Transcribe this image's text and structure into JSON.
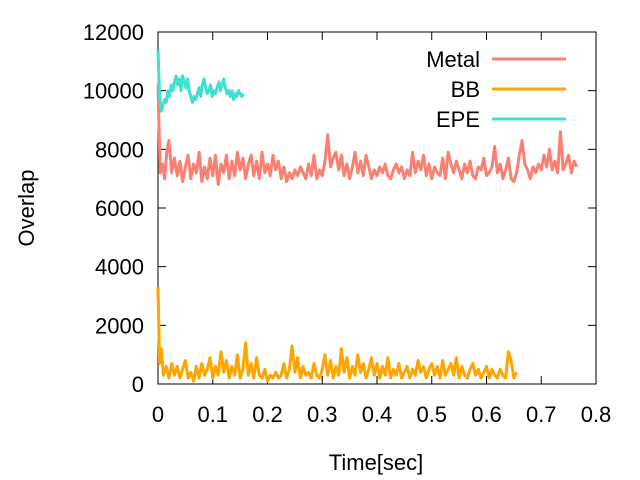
{
  "chart_data": {
    "type": "line",
    "title": "",
    "xlabel": "Time[sec]",
    "ylabel": "Overlap",
    "xlim": [
      0,
      0.8
    ],
    "ylim": [
      0,
      12000
    ],
    "xticks": [
      "0",
      "0.1",
      "0.2",
      "0.3",
      "0.4",
      "0.5",
      "0.6",
      "0.7",
      "0.8"
    ],
    "xtick_values": [
      0,
      0.1,
      0.2,
      0.3,
      0.4,
      0.5,
      0.6,
      0.7,
      0.8
    ],
    "yticks": [
      "0",
      "2000",
      "4000",
      "6000",
      "8000",
      "10000",
      "12000"
    ],
    "ytick_values": [
      0,
      2000,
      4000,
      6000,
      8000,
      10000,
      12000
    ],
    "grid": false,
    "legend_position": "top-right",
    "series": [
      {
        "name": "Metal",
        "color": "#fa8072",
        "x": [
          0,
          0.004,
          0.008,
          0.012,
          0.016,
          0.02,
          0.025,
          0.03,
          0.035,
          0.04,
          0.045,
          0.05,
          0.055,
          0.06,
          0.065,
          0.07,
          0.075,
          0.08,
          0.085,
          0.09,
          0.095,
          0.1,
          0.105,
          0.11,
          0.115,
          0.12,
          0.125,
          0.13,
          0.135,
          0.14,
          0.145,
          0.15,
          0.155,
          0.16,
          0.165,
          0.17,
          0.175,
          0.18,
          0.185,
          0.19,
          0.195,
          0.2,
          0.205,
          0.21,
          0.215,
          0.22,
          0.225,
          0.23,
          0.235,
          0.24,
          0.245,
          0.25,
          0.255,
          0.26,
          0.265,
          0.27,
          0.275,
          0.28,
          0.285,
          0.29,
          0.295,
          0.3,
          0.305,
          0.31,
          0.315,
          0.32,
          0.325,
          0.33,
          0.335,
          0.34,
          0.345,
          0.35,
          0.355,
          0.36,
          0.365,
          0.37,
          0.375,
          0.38,
          0.385,
          0.39,
          0.395,
          0.4,
          0.405,
          0.41,
          0.415,
          0.42,
          0.425,
          0.43,
          0.435,
          0.44,
          0.445,
          0.45,
          0.455,
          0.46,
          0.465,
          0.47,
          0.475,
          0.48,
          0.485,
          0.49,
          0.495,
          0.5,
          0.505,
          0.51,
          0.515,
          0.52,
          0.525,
          0.53,
          0.535,
          0.54,
          0.545,
          0.55,
          0.555,
          0.56,
          0.565,
          0.57,
          0.575,
          0.58,
          0.585,
          0.59,
          0.595,
          0.6,
          0.605,
          0.61,
          0.615,
          0.62,
          0.625,
          0.63,
          0.635,
          0.64,
          0.645,
          0.65,
          0.655,
          0.66,
          0.665,
          0.67,
          0.675,
          0.68,
          0.685,
          0.69,
          0.695,
          0.7,
          0.705,
          0.71,
          0.715,
          0.72,
          0.725,
          0.73,
          0.735,
          0.74,
          0.745,
          0.75,
          0.755,
          0.76,
          0.765
        ],
        "y": [
          10200,
          7200,
          7500,
          7000,
          7900,
          8300,
          7200,
          7700,
          7100,
          7600,
          6900,
          7400,
          7800,
          7000,
          7500,
          7200,
          7900,
          6900,
          7400,
          7000,
          7700,
          7100,
          7800,
          6800,
          7500,
          7200,
          7800,
          7000,
          7600,
          7100,
          7900,
          7300,
          7700,
          7000,
          7500,
          7800,
          7100,
          7600,
          7000,
          7900,
          7200,
          7500,
          7100,
          7800,
          7300,
          7600,
          7000,
          7400,
          6900,
          7200,
          7000,
          7300,
          7100,
          7400,
          7200,
          7000,
          7500,
          7100,
          7800,
          7000,
          7300,
          7100,
          7600,
          8500,
          7400,
          7700,
          7900,
          7300,
          7800,
          7100,
          7500,
          7000,
          7400,
          7900,
          7200,
          7600,
          7100,
          7800,
          7400,
          7000,
          7300,
          7100,
          7400,
          7200,
          7500,
          7100,
          7000,
          7300,
          7500,
          7200,
          7400,
          7000,
          7300,
          7100,
          7900,
          7200,
          7600,
          7300,
          7800,
          7100,
          7500,
          7000,
          7400,
          7200,
          7100,
          7700,
          7000,
          7900,
          7500,
          7200,
          7600,
          7300,
          7000,
          7500,
          7200,
          7600,
          7100,
          7000,
          7400,
          7300,
          7700,
          7100,
          7200,
          7400,
          8100,
          7200,
          7500,
          7000,
          7300,
          7700,
          7000,
          6900,
          7200,
          7800,
          8300,
          7500,
          7300,
          7000,
          7400,
          7200,
          7500,
          7300,
          7800,
          7400,
          8000,
          7300,
          7600,
          7200,
          8600,
          7300,
          7500,
          7800,
          7200,
          7600,
          7400
        ]
      },
      {
        "name": "BB",
        "color": "#ffa500",
        "x": [
          0,
          0.003,
          0.006,
          0.01,
          0.015,
          0.02,
          0.025,
          0.03,
          0.035,
          0.04,
          0.045,
          0.05,
          0.055,
          0.06,
          0.065,
          0.07,
          0.075,
          0.08,
          0.085,
          0.09,
          0.095,
          0.1,
          0.105,
          0.11,
          0.115,
          0.12,
          0.125,
          0.13,
          0.135,
          0.14,
          0.145,
          0.15,
          0.155,
          0.16,
          0.165,
          0.17,
          0.175,
          0.18,
          0.185,
          0.19,
          0.195,
          0.2,
          0.205,
          0.21,
          0.215,
          0.22,
          0.225,
          0.23,
          0.235,
          0.24,
          0.245,
          0.25,
          0.255,
          0.26,
          0.265,
          0.27,
          0.275,
          0.28,
          0.285,
          0.29,
          0.295,
          0.3,
          0.305,
          0.31,
          0.315,
          0.32,
          0.325,
          0.33,
          0.335,
          0.34,
          0.345,
          0.35,
          0.355,
          0.36,
          0.365,
          0.37,
          0.375,
          0.38,
          0.385,
          0.39,
          0.395,
          0.4,
          0.405,
          0.41,
          0.415,
          0.42,
          0.425,
          0.43,
          0.435,
          0.44,
          0.445,
          0.45,
          0.455,
          0.46,
          0.465,
          0.47,
          0.475,
          0.48,
          0.485,
          0.49,
          0.495,
          0.5,
          0.505,
          0.51,
          0.515,
          0.52,
          0.525,
          0.53,
          0.535,
          0.54,
          0.545,
          0.55,
          0.555,
          0.56,
          0.565,
          0.57,
          0.575,
          0.58,
          0.585,
          0.59,
          0.595,
          0.6,
          0.605,
          0.61,
          0.615,
          0.62,
          0.625,
          0.63,
          0.635,
          0.64,
          0.645,
          0.65,
          0.655
        ],
        "y": [
          3300,
          700,
          1200,
          300,
          600,
          200,
          700,
          300,
          600,
          200,
          500,
          800,
          200,
          400,
          100,
          600,
          200,
          700,
          300,
          500,
          900,
          200,
          600,
          300,
          1100,
          400,
          800,
          200,
          600,
          300,
          1000,
          200,
          500,
          1400,
          300,
          700,
          200,
          900,
          300,
          200,
          500,
          100,
          300,
          200,
          400,
          200,
          300,
          700,
          200,
          500,
          1300,
          400,
          900,
          200,
          600,
          300,
          400,
          200,
          700,
          300,
          200,
          500,
          1000,
          300,
          800,
          200,
          600,
          300,
          1200,
          400,
          900,
          200,
          600,
          300,
          1000,
          400,
          700,
          200,
          500,
          900,
          300,
          700,
          200,
          600,
          300,
          900,
          200,
          500,
          300,
          700,
          200,
          400,
          600,
          200,
          500,
          300,
          800,
          400,
          600,
          200,
          500,
          700,
          300,
          600,
          200,
          800,
          300,
          500,
          700,
          300,
          900,
          200,
          600,
          300,
          200,
          500,
          700,
          300,
          500,
          200,
          400,
          600,
          200,
          500,
          300,
          200,
          500,
          300,
          200,
          1100,
          800,
          200,
          400
        ]
      },
      {
        "name": "EPE",
        "color": "#40e0d0",
        "x": [
          0,
          0.003,
          0.006,
          0.009,
          0.012,
          0.015,
          0.018,
          0.021,
          0.024,
          0.027,
          0.03,
          0.033,
          0.036,
          0.039,
          0.042,
          0.045,
          0.048,
          0.051,
          0.054,
          0.057,
          0.06,
          0.063,
          0.066,
          0.069,
          0.072,
          0.075,
          0.078,
          0.081,
          0.084,
          0.087,
          0.09,
          0.093,
          0.096,
          0.099,
          0.102,
          0.105,
          0.108,
          0.111,
          0.114,
          0.117,
          0.12,
          0.123,
          0.126,
          0.129,
          0.132,
          0.135,
          0.138,
          0.141,
          0.144,
          0.147,
          0.15,
          0.153,
          0.156
        ],
        "y": [
          11400,
          9800,
          9300,
          9500,
          9700,
          9600,
          10000,
          9800,
          10200,
          10000,
          10300,
          10500,
          10200,
          10400,
          10000,
          10500,
          10300,
          10100,
          10400,
          10000,
          9800,
          9600,
          9800,
          9700,
          9900,
          10100,
          9800,
          10200,
          10400,
          10100,
          9900,
          10000,
          10200,
          9800,
          10000,
          9900,
          10100,
          10300,
          10000,
          10200,
          10400,
          10100,
          9900,
          10000,
          9800,
          10000,
          9700,
          9900,
          9800,
          10000,
          9900,
          9800,
          9900
        ]
      }
    ]
  }
}
